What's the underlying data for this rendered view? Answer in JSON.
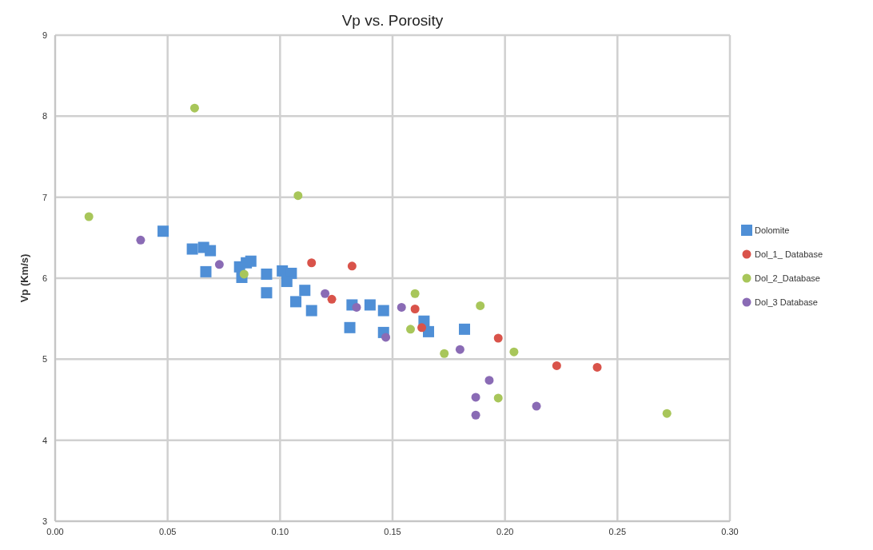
{
  "chart_data": {
    "type": "scatter",
    "title": "Vp vs. Porosity",
    "ylabel": "Vp (Km/s)",
    "xlim": [
      0,
      0.3
    ],
    "xticks": [
      {
        "value": 0,
        "label": "0.00"
      },
      {
        "value": 0.05,
        "label": "0.05"
      },
      {
        "value": 0.1,
        "label": "0.10"
      },
      {
        "value": 0.15,
        "label": "0.15"
      },
      {
        "value": 0.2,
        "label": "0.20"
      },
      {
        "value": 0.25,
        "label": "0.25"
      },
      {
        "value": 0.3,
        "label": "0.30"
      }
    ],
    "ylim": [
      3,
      9
    ],
    "yticks": [
      3,
      4,
      5,
      6,
      7,
      8,
      9
    ],
    "grid": true,
    "legend": "right",
    "series": [
      {
        "name": "Dolomite",
        "color": "#4f8fd6",
        "marker": "square",
        "x": [
          0.048,
          0.061,
          0.066,
          0.069,
          0.067,
          0.082,
          0.085,
          0.087,
          0.083,
          0.094,
          0.094,
          0.101,
          0.105,
          0.103,
          0.111,
          0.107,
          0.114,
          0.132,
          0.131,
          0.14,
          0.146,
          0.146,
          0.166,
          0.164,
          0.182
        ],
        "values": [
          6.58,
          6.36,
          6.38,
          6.34,
          6.08,
          6.14,
          6.19,
          6.21,
          6.01,
          6.05,
          5.82,
          6.09,
          6.06,
          5.96,
          5.85,
          5.71,
          5.6,
          5.67,
          5.39,
          5.67,
          5.6,
          5.33,
          5.34,
          5.47,
          5.37
        ]
      },
      {
        "name": "Dol_1_ Database",
        "color": "#d9534a",
        "marker": "circle",
        "x": [
          0.114,
          0.132,
          0.123,
          0.16,
          0.163,
          0.197,
          0.223,
          0.241
        ],
        "values": [
          6.19,
          6.15,
          5.74,
          5.62,
          5.39,
          5.26,
          4.92,
          4.9
        ]
      },
      {
        "name": "Dol_2_Database",
        "color": "#a8c65a",
        "marker": "circle",
        "x": [
          0.015,
          0.062,
          0.108,
          0.084,
          0.16,
          0.189,
          0.158,
          0.173,
          0.204,
          0.197,
          0.272
        ],
        "values": [
          6.76,
          8.1,
          7.02,
          6.05,
          5.81,
          5.66,
          5.37,
          5.07,
          5.09,
          4.52,
          4.33
        ]
      },
      {
        "name": "Dol_3 Database",
        "color": "#8a6bb5",
        "marker": "circle",
        "x": [
          0.038,
          0.073,
          0.12,
          0.134,
          0.154,
          0.147,
          0.18,
          0.193,
          0.187,
          0.187,
          0.214
        ],
        "values": [
          6.47,
          6.17,
          5.81,
          5.64,
          5.64,
          5.27,
          5.12,
          4.74,
          4.53,
          4.31,
          4.42
        ]
      }
    ]
  }
}
